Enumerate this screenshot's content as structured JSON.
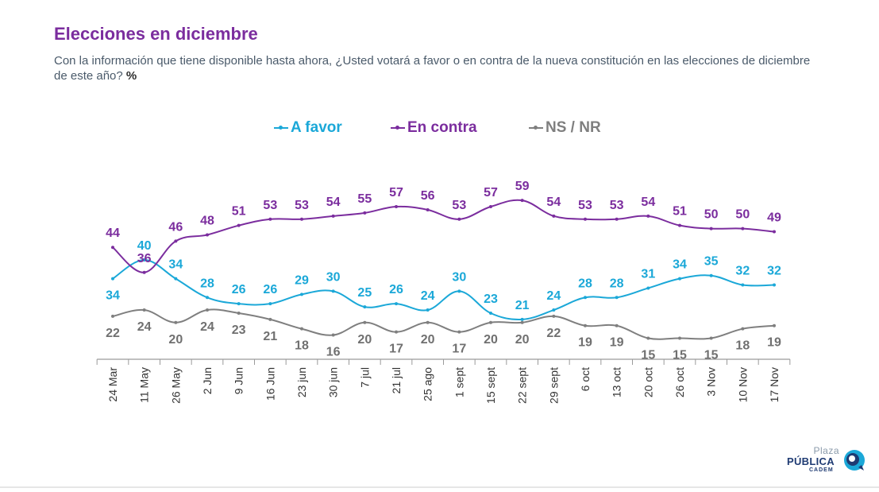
{
  "header": {
    "title": "Elecciones en diciembre",
    "subtitle": "Con la información que tiene disponible hasta ahora, ¿Usted votará a favor o en contra de la nueva constitución en las elecciones de diciembre de este año?",
    "unit": "%"
  },
  "legend": {
    "items": [
      {
        "label": "A favor",
        "color": "#1BA8D8"
      },
      {
        "label": "En contra",
        "color": "#7B2D9E"
      },
      {
        "label": "NS / NR",
        "color": "#7f7f7f"
      }
    ]
  },
  "chart_data": {
    "type": "line",
    "categories": [
      "24 Mar",
      "11 May",
      "26 May",
      "2 Jun",
      "9 Jun",
      "16 Jun",
      "23 jun",
      "30 jun",
      "7 jul",
      "21 jul",
      "25 ago",
      "1 sept",
      "15 sept",
      "22 sept",
      "29 sept",
      "6 oct",
      "13 oct",
      "20 oct",
      "26 oct",
      "3 Nov",
      "10 Nov",
      "17 Nov"
    ],
    "series": [
      {
        "name": "A favor",
        "color": "#1BA8D8",
        "values": [
          34,
          40,
          34,
          28,
          26,
          26,
          29,
          30,
          25,
          26,
          24,
          30,
          23,
          21,
          24,
          28,
          28,
          31,
          34,
          35,
          32,
          32
        ]
      },
      {
        "name": "En contra",
        "color": "#7B2D9E",
        "values": [
          44,
          36,
          46,
          48,
          51,
          53,
          53,
          54,
          55,
          57,
          56,
          53,
          57,
          59,
          54,
          53,
          53,
          54,
          51,
          50,
          50,
          49
        ]
      },
      {
        "name": "NS / NR",
        "color": "#7f7f7f",
        "values": [
          22,
          24,
          20,
          24,
          23,
          21,
          18,
          16,
          20,
          17,
          20,
          17,
          20,
          20,
          22,
          19,
          19,
          15,
          15,
          15,
          18,
          19
        ]
      }
    ],
    "legend_position": "top-center",
    "grid": false
  },
  "logo": {
    "line1": "Plaza",
    "line2": "PÚBLICA",
    "line3": "CADEM"
  }
}
